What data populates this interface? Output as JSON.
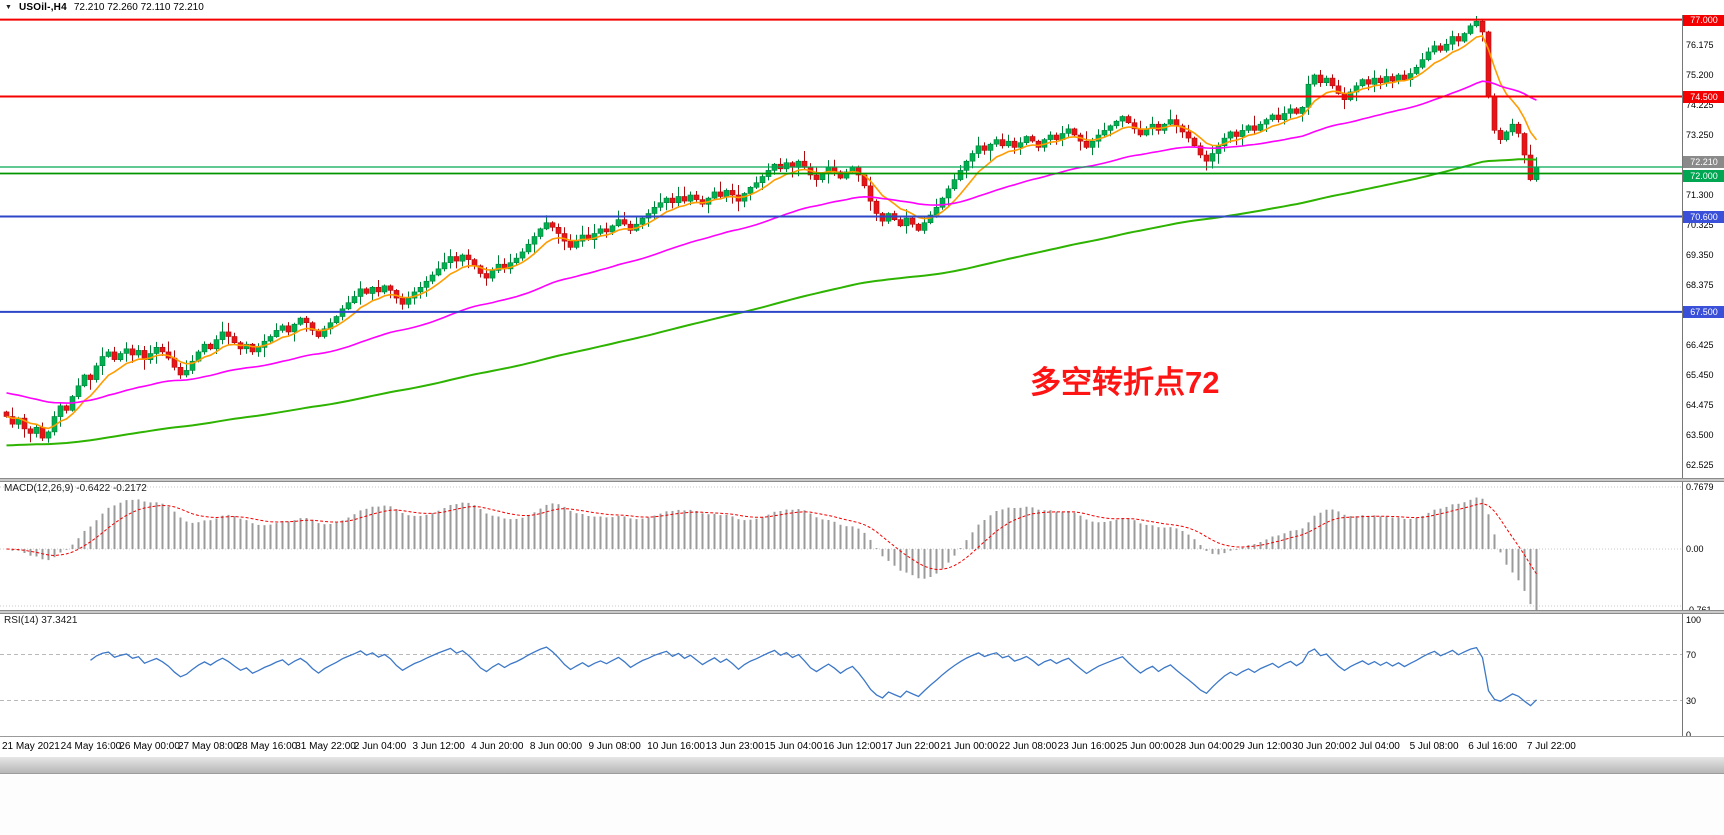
{
  "header": {
    "dropdown_icon": "▼",
    "symbol_period": "USOil-,H4",
    "ohlc_text": "72.210 72.260 72.110 72.210"
  },
  "main_chart": {
    "annotation": {
      "text": "多空转折点72",
      "color": "#ff1414"
    },
    "price_ticks": [
      "76.175",
      "75.200",
      "74.225",
      "73.250",
      "71.300",
      "70.325",
      "69.350",
      "68.375",
      "66.425",
      "65.450",
      "64.475",
      "63.500",
      "62.525"
    ],
    "hlines": [
      {
        "label": "77.000",
        "price": 77.0,
        "line_color": "#f40000",
        "badge": "#f40000",
        "width": 2,
        "dy": 0
      },
      {
        "label": "74.500",
        "price": 74.5,
        "line_color": "#f40000",
        "badge": "#f40000",
        "width": 2,
        "dy": 0
      },
      {
        "label": "72.210",
        "price": 72.21,
        "line_color": "#00a651",
        "badge": "#8a8a8a",
        "width": 1.2,
        "dy": -5
      },
      {
        "label": "72.000",
        "price": 72.0,
        "line_color": "#009600",
        "badge": "#00a651",
        "width": 1.8,
        "dy": 3
      },
      {
        "label": "70.600",
        "price": 70.6,
        "line_color": "#2d46c8",
        "badge": "#3a50d9",
        "width": 2,
        "dy": 0
      },
      {
        "label": "67.500",
        "price": 67.5,
        "line_color": "#2d46c8",
        "badge": "#3a50d9",
        "width": 2,
        "dy": 0
      }
    ]
  },
  "chart_data": {
    "type": "candlestick",
    "symbol": "USOil-",
    "timeframe": "H4",
    "ohlc": {
      "open": "72.210",
      "high": "72.260",
      "low": "72.110",
      "close": "72.210"
    },
    "ylim": [
      62.13,
      77.15
    ],
    "x_axis_labels": [
      "21 May 2021",
      "24 May 16:00",
      "26 May 00:00",
      "27 May 08:00",
      "28 May 16:00",
      "31 May 22:00",
      "2 Jun 04:00",
      "3 Jun 12:00",
      "4 Jun 20:00",
      "8 Jun 00:00",
      "9 Jun 08:00",
      "10 Jun 16:00",
      "13 Jun 23:00",
      "15 Jun 04:00",
      "16 Jun 12:00",
      "17 Jun 22:00",
      "21 Jun 00:00",
      "22 Jun 08:00",
      "23 Jun 16:00",
      "25 Jun 00:00",
      "28 Jun 04:00",
      "29 Jun 12:00",
      "30 Jun 20:00",
      "2 Jul 04:00",
      "5 Jul 08:00",
      "6 Jul 16:00",
      "7 Jul 22:00"
    ],
    "closes": [
      64.1,
      63.85,
      64.05,
      63.7,
      63.55,
      63.75,
      63.4,
      63.6,
      64.1,
      64.45,
      64.3,
      64.75,
      65.1,
      65.45,
      65.3,
      65.75,
      66.05,
      66.2,
      65.95,
      66.15,
      66.3,
      66.1,
      66.25,
      65.95,
      66.15,
      66.35,
      66.2,
      66.0,
      65.7,
      65.45,
      65.6,
      65.9,
      66.2,
      66.45,
      66.3,
      66.6,
      66.85,
      66.7,
      66.5,
      66.3,
      66.45,
      66.2,
      66.35,
      66.55,
      66.7,
      66.9,
      67.05,
      66.85,
      67.1,
      67.3,
      67.15,
      66.9,
      66.7,
      66.95,
      67.15,
      67.35,
      67.6,
      67.8,
      68.0,
      68.25,
      68.1,
      68.3,
      68.15,
      68.35,
      68.2,
      67.95,
      67.75,
      67.95,
      68.15,
      68.3,
      68.5,
      68.7,
      68.9,
      69.1,
      69.3,
      69.15,
      69.35,
      69.2,
      69.0,
      68.75,
      68.6,
      68.85,
      69.05,
      68.9,
      69.1,
      69.25,
      69.45,
      69.7,
      69.95,
      70.2,
      70.4,
      70.25,
      70.05,
      69.8,
      69.6,
      69.8,
      70.0,
      69.85,
      70.05,
      70.2,
      70.1,
      70.3,
      70.5,
      70.35,
      70.15,
      70.35,
      70.55,
      70.7,
      70.9,
      71.05,
      71.2,
      71.05,
      71.25,
      71.1,
      71.3,
      71.15,
      71.0,
      71.2,
      71.4,
      71.25,
      71.45,
      71.3,
      71.1,
      71.35,
      71.55,
      71.7,
      71.9,
      72.1,
      72.3,
      72.15,
      72.35,
      72.2,
      72.4,
      72.2,
      71.95,
      71.8,
      72.0,
      72.2,
      72.05,
      71.85,
      72.05,
      72.2,
      71.95,
      71.6,
      71.1,
      70.7,
      70.45,
      70.7,
      70.5,
      70.3,
      70.55,
      70.35,
      70.15,
      70.4,
      70.65,
      70.9,
      71.2,
      71.5,
      71.8,
      72.1,
      72.4,
      72.65,
      72.9,
      72.75,
      72.95,
      73.1,
      72.9,
      73.05,
      72.85,
      73.0,
      73.2,
      73.05,
      72.85,
      73.1,
      73.25,
      73.1,
      73.3,
      73.45,
      73.25,
      73.05,
      72.85,
      73.05,
      73.25,
      73.4,
      73.55,
      73.7,
      73.85,
      73.65,
      73.45,
      73.25,
      73.45,
      73.6,
      73.4,
      73.6,
      73.75,
      73.55,
      73.35,
      73.15,
      72.9,
      72.6,
      72.4,
      72.65,
      72.9,
      73.15,
      73.35,
      73.2,
      73.4,
      73.55,
      73.4,
      73.6,
      73.75,
      73.9,
      73.75,
      73.95,
      74.1,
      73.95,
      74.15,
      74.9,
      75.2,
      74.95,
      75.1,
      74.85,
      74.6,
      74.4,
      74.65,
      74.85,
      75.05,
      74.9,
      75.1,
      74.95,
      75.15,
      75.0,
      75.2,
      75.05,
      75.25,
      75.45,
      75.7,
      75.95,
      76.15,
      76.0,
      76.2,
      76.45,
      76.3,
      76.55,
      76.8,
      76.95,
      76.6,
      74.5,
      73.4,
      73.1,
      73.35,
      73.6,
      73.3,
      72.6,
      71.8,
      72.21
    ],
    "moving_averages": [
      {
        "name": "ma-fast-line",
        "color": "#ff9c00",
        "period": 8
      },
      {
        "name": "ma-mid-line",
        "color": "#ff00ff",
        "period": 48
      },
      {
        "name": "ma-slow-line",
        "color": "#2db300",
        "period": 170
      }
    ],
    "indicators": [
      {
        "name": "MACD",
        "label": "MACD(12,26,9) -0.6422 -0.2172",
        "ticks": [
          "0.7679",
          "0.00",
          "-0.761"
        ]
      },
      {
        "name": "RSI",
        "label": "RSI(14) 37.3421",
        "ticks": [
          "100",
          "70",
          "30",
          "0"
        ]
      }
    ]
  },
  "colors": {
    "bull": "#00b050",
    "bull_border": "#00813a",
    "bear": "#e81417",
    "bear_border": "#ad0d10",
    "macd_hist": "#9b9b9b",
    "macd_signal": "#f40000",
    "rsi_line": "#3c78c8",
    "grid_dotted": "#c8c8c8"
  }
}
